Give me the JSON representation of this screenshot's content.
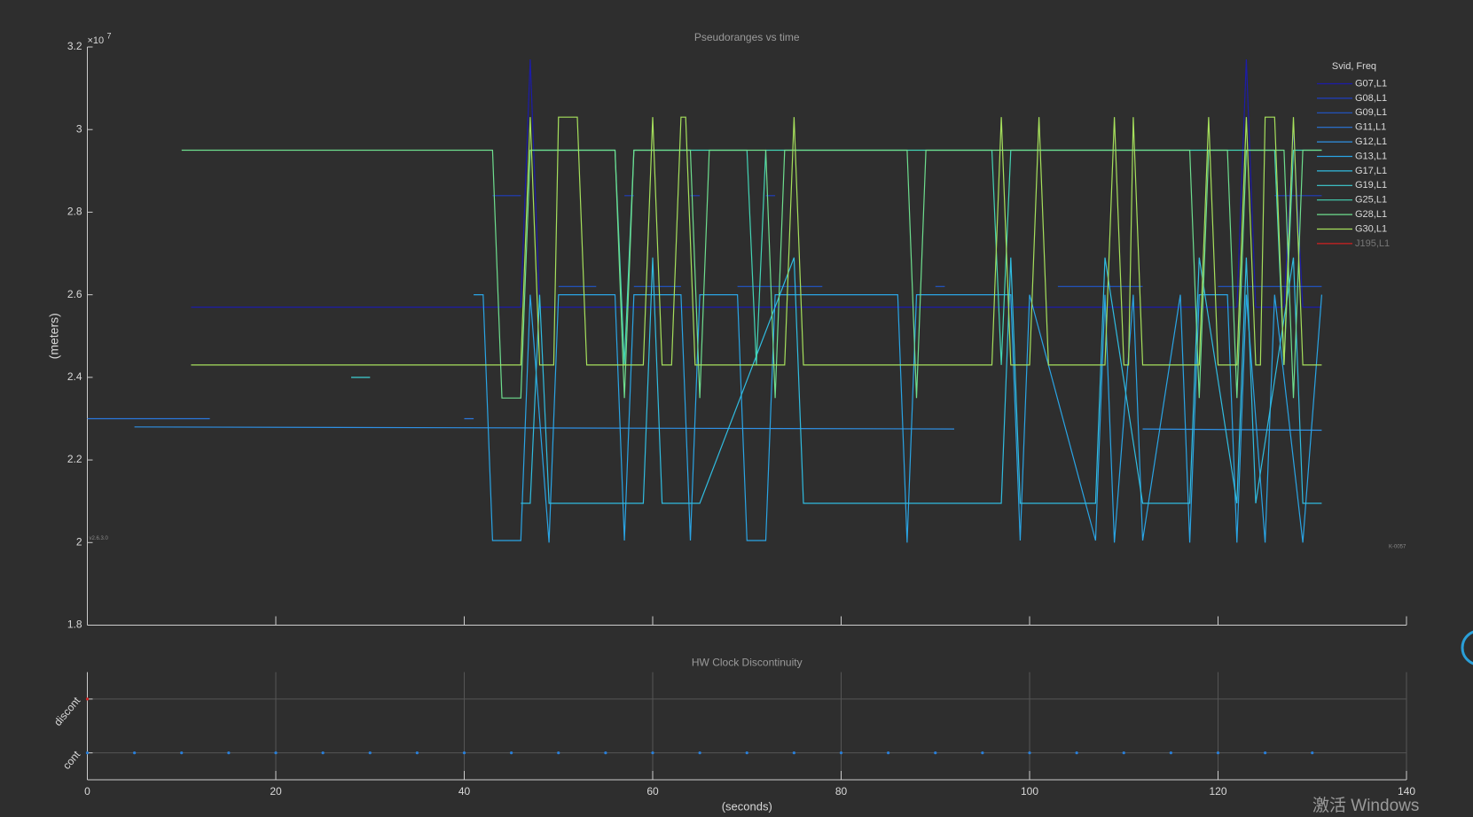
{
  "chart_data": [
    {
      "type": "line",
      "title": "Pseudoranges vs time",
      "y_label": "(meters)",
      "y_exponent": "×10",
      "y_exponent_power": "7",
      "annotations": [
        "v2.6.3.0",
        "K-0057"
      ],
      "xlim": [
        0,
        140
      ],
      "xticks": [
        0,
        20,
        40,
        60,
        80,
        100,
        120,
        140
      ],
      "xtick_labels": false,
      "ylim": [
        1.8,
        3.2
      ],
      "yticks": [
        1.8,
        2,
        2.2,
        2.4,
        2.6,
        2.8,
        3,
        3.2
      ],
      "grid": false,
      "legend_title": "Svid, Freq",
      "legend_position": "northeast",
      "series": [
        {
          "name": "G07,L1",
          "color": "#1c1ca8",
          "x": [
            11,
            46,
            47,
            48,
            122,
            123,
            124,
            127,
            128,
            129,
            131
          ],
          "values": [
            2.57,
            2.57,
            3.17,
            2.57,
            2.57,
            3.17,
            2.57,
            2.57,
            3.0,
            2.57,
            2.57
          ]
        },
        {
          "name": "G08,L1",
          "color": "#1f3fc0",
          "x": [
            43,
            46,
            47,
            57,
            58,
            59,
            64,
            65,
            66,
            72,
            73,
            74,
            126,
            131
          ],
          "values": [
            2.84,
            2.84,
            null,
            2.84,
            2.84,
            null,
            2.84,
            2.84,
            null,
            2.84,
            2.84,
            null,
            2.84,
            2.84
          ]
        },
        {
          "name": "G09,L1",
          "color": "#2058cc",
          "x": [
            50,
            54,
            55,
            58,
            63,
            64,
            69,
            78,
            79,
            90,
            91,
            102,
            103,
            112,
            113,
            120,
            121,
            131
          ],
          "values": [
            2.62,
            2.62,
            null,
            2.62,
            2.62,
            null,
            2.62,
            2.62,
            null,
            2.62,
            2.62,
            null,
            2.62,
            2.62,
            null,
            2.62,
            2.62,
            2.62
          ]
        },
        {
          "name": "G11,L1",
          "color": "#2a78dc",
          "x": [
            0,
            13,
            14,
            40,
            41
          ],
          "values": [
            2.3,
            2.3,
            null,
            2.3,
            2.3
          ]
        },
        {
          "name": "G12,L1",
          "color": "#2f90e4",
          "x": [
            5,
            92,
            93,
            112,
            131
          ],
          "values": [
            2.28,
            2.275,
            null,
            2.275,
            2.272
          ]
        },
        {
          "name": "G13,L1",
          "color": "#2aa4e4",
          "x": [
            41,
            42,
            43,
            46,
            47,
            49,
            50,
            56,
            57,
            58,
            63,
            64,
            65,
            69,
            70,
            72,
            73,
            74,
            86,
            87,
            88,
            98,
            99,
            100,
            107,
            108,
            109,
            111,
            112,
            116,
            117,
            118,
            121,
            122,
            123,
            125,
            126,
            129,
            131
          ],
          "values": [
            2.6,
            2.6,
            2.005,
            2.005,
            2.6,
            2.0,
            2.6,
            2.6,
            2.005,
            2.6,
            2.6,
            2.005,
            2.6,
            2.6,
            2.005,
            2.005,
            2.6,
            2.6,
            2.6,
            2.0,
            2.6,
            2.6,
            2.005,
            2.6,
            2.005,
            2.6,
            2.0,
            2.6,
            2.005,
            2.6,
            2.0,
            2.6,
            2.6,
            2.0,
            2.6,
            2.0,
            2.6,
            2.0,
            2.6
          ]
        },
        {
          "name": "G17,L1",
          "color": "#30bce0",
          "x": [
            46,
            47,
            48,
            49,
            53,
            59,
            60,
            61,
            64,
            65,
            75,
            76,
            97,
            98,
            99,
            107,
            108,
            112,
            113,
            117,
            118,
            122,
            123,
            124,
            128,
            129,
            131
          ],
          "values": [
            2.095,
            2.095,
            2.6,
            2.095,
            2.095,
            2.095,
            2.69,
            2.095,
            2.095,
            2.095,
            2.69,
            2.095,
            2.095,
            2.69,
            2.095,
            2.095,
            2.69,
            2.095,
            2.095,
            2.095,
            2.69,
            2.095,
            2.69,
            2.095,
            2.69,
            2.095,
            2.095
          ]
        },
        {
          "name": "G19,L1",
          "color": "#3ecfd4",
          "x": [
            28,
            30
          ],
          "values": [
            2.4,
            2.4
          ]
        },
        {
          "name": "G25,L1",
          "color": "#44d4b4",
          "x": [
            47,
            56,
            57,
            58,
            70,
            71,
            72,
            96,
            97,
            98,
            126,
            127,
            128,
            131
          ],
          "values": [
            2.95,
            2.95,
            2.43,
            2.95,
            2.95,
            2.43,
            2.95,
            2.95,
            2.43,
            2.95,
            2.95,
            2.43,
            2.95,
            2.95
          ]
        },
        {
          "name": "G28,L1",
          "color": "#6ede8e",
          "x": [
            10,
            43,
            44,
            46,
            47,
            56,
            57,
            58,
            64,
            65,
            66,
            72,
            73,
            74,
            87,
            88,
            89,
            117,
            118,
            119,
            121,
            122,
            123,
            124,
            127,
            128,
            129,
            131
          ],
          "values": [
            2.95,
            2.95,
            2.35,
            2.35,
            2.95,
            2.95,
            2.35,
            2.95,
            2.95,
            2.35,
            2.95,
            2.95,
            2.35,
            2.95,
            2.95,
            2.35,
            2.95,
            2.95,
            2.35,
            2.95,
            2.95,
            2.35,
            2.95,
            2.95,
            2.95,
            2.35,
            2.95,
            2.95
          ]
        },
        {
          "name": "G30,L1",
          "color": "#a6e05c",
          "x": [
            11,
            46,
            47,
            48,
            49.5,
            50,
            52,
            53,
            59,
            60,
            61,
            62,
            63,
            63.5,
            64.5,
            74,
            75,
            76,
            96,
            97,
            98,
            100,
            101,
            102,
            108,
            109,
            110,
            110.5,
            111,
            112,
            118,
            119,
            120,
            122,
            123,
            124,
            124.5,
            125,
            126,
            127,
            128,
            129,
            131
          ],
          "values": [
            2.43,
            2.43,
            3.03,
            2.43,
            2.43,
            3.03,
            3.03,
            2.43,
            2.43,
            3.03,
            2.43,
            2.43,
            3.03,
            3.03,
            2.43,
            2.43,
            3.03,
            2.43,
            2.43,
            3.03,
            2.43,
            2.43,
            3.03,
            2.43,
            2.43,
            3.03,
            2.43,
            2.43,
            3.03,
            2.43,
            2.43,
            3.03,
            2.43,
            2.43,
            3.03,
            2.43,
            2.43,
            3.03,
            3.03,
            2.43,
            3.03,
            2.43,
            2.43
          ]
        },
        {
          "name": "J195,L1",
          "color": "#d02020"
        }
      ]
    },
    {
      "type": "scatter",
      "title": "HW Clock Discontinuity",
      "x_label": "(seconds)",
      "xlim": [
        0,
        140
      ],
      "xticks": [
        0,
        20,
        40,
        60,
        80,
        100,
        120,
        140
      ],
      "ylim": [
        -0.5,
        1.5
      ],
      "yticks": [
        {
          "value": 0,
          "label": "cont"
        },
        {
          "value": 1,
          "label": "discont"
        }
      ],
      "grid": true,
      "series": [
        {
          "color": "#2a7fd8",
          "x": [
            0,
            5,
            10,
            15,
            20,
            25,
            30,
            35,
            40,
            45,
            50,
            55,
            60,
            65,
            70,
            75,
            80,
            85,
            90,
            95,
            100,
            105,
            110,
            115,
            120,
            125,
            130
          ],
          "values": [
            0,
            0,
            0,
            0,
            0,
            0,
            0,
            0,
            0,
            0,
            0,
            0,
            0,
            0,
            0,
            0,
            0,
            0,
            0,
            0,
            0,
            0,
            0,
            0,
            0,
            0,
            0
          ]
        },
        {
          "color": "#d02020",
          "x": [
            0
          ],
          "values": [
            1
          ]
        }
      ]
    }
  ],
  "watermark": "激活 Windows"
}
